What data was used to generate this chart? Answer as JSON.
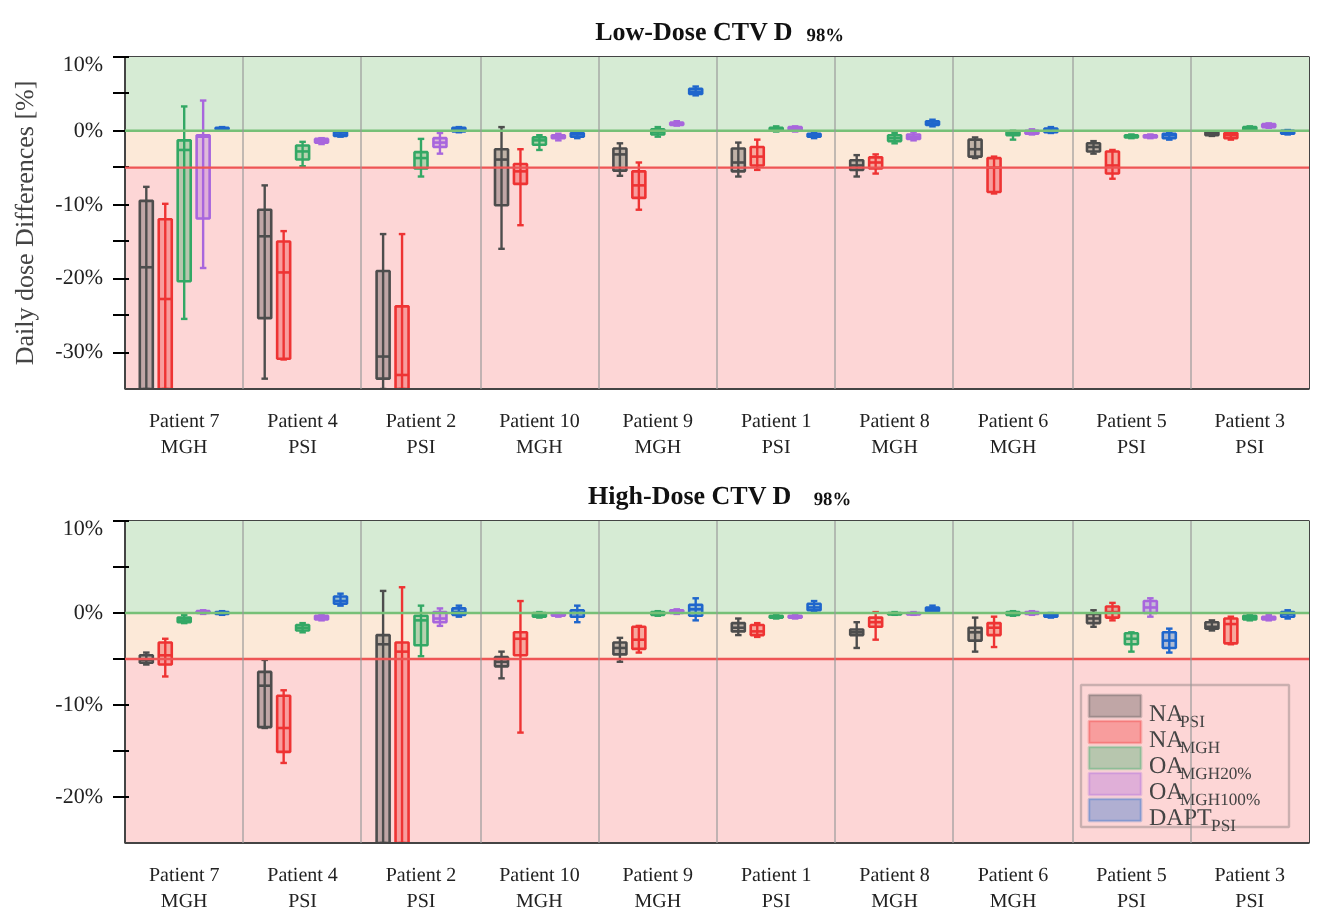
{
  "chart_data": [
    {
      "type": "box",
      "title": "Low-Dose CTV D$_{98%}$",
      "ylabel": "Daily dose Differences [%]",
      "categories": [
        "Patient 7\nMGH",
        "Patient 4\nPSI",
        "Patient 2\nPSI",
        "Patient 10\nMGH",
        "Patient 9\nMGH",
        "Patient 1\nPSI",
        "Patient 8\nMGH",
        "Patient 6\nMGH",
        "Patient 5\nPSI",
        "Patient 3\nPSI"
      ],
      "ylim": [
        -35,
        10
      ],
      "yticks": [
        {
          "value": 10,
          "label": "10%"
        },
        {
          "value": 5,
          "label": null
        },
        {
          "value": 0,
          "label": "0%"
        },
        {
          "value": -5,
          "label": null
        },
        {
          "value": -10,
          "label": "-10%"
        },
        {
          "value": -15,
          "label": null
        },
        {
          "value": -20,
          "label": "-20%"
        },
        {
          "value": -25,
          "label": null
        },
        {
          "value": -30,
          "label": "-30%"
        }
      ],
      "grid": "x",
      "bands": [
        {
          "axis": "y",
          "from": 0,
          "to": 10,
          "color": "#d6ebd4"
        },
        {
          "axis": "y",
          "from": -5,
          "to": 0,
          "color": "#fce9d8"
        },
        {
          "axis": "y",
          "from": -35,
          "to": -5,
          "color": "#fdd6d6"
        }
      ],
      "ref_lines": [
        {
          "axis": "y",
          "value": 0,
          "color": "#77c077"
        },
        {
          "axis": "y",
          "value": -5,
          "color": "#ee5555"
        }
      ],
      "series": [
        {
          "color": "#4d4d4d",
          "boxes": [
            {
              "low": -35,
              "q1": -35,
              "median": -18.5,
              "q3": -9.5,
              "high": -7.6
            },
            {
              "low": -33.6,
              "q1": -25.4,
              "median": -14.3,
              "q3": -10.7,
              "high": -7.4
            },
            {
              "low": -35,
              "q1": -33.6,
              "median": -30.6,
              "q3": -19.0,
              "high": -14.0
            },
            {
              "low": -16.0,
              "q1": -10.1,
              "median": -3.9,
              "q3": -2.5,
              "high": 0.5
            },
            {
              "low": -6.1,
              "q1": -5.4,
              "median": -3.2,
              "q3": -2.4,
              "high": -1.7
            },
            {
              "low": -6.2,
              "q1": -5.5,
              "median": -4.3,
              "q3": -2.4,
              "high": -1.6
            },
            {
              "low": -6.2,
              "q1": -5.3,
              "median": -4.7,
              "q3": -4.0,
              "high": -3.3
            },
            {
              "low": -3.7,
              "q1": -3.5,
              "median": -2.5,
              "q3": -1.2,
              "high": -0.9
            },
            {
              "low": -3.1,
              "q1": -2.8,
              "median": -2.2,
              "q3": -1.7,
              "high": -1.4
            },
            {
              "low": -0.7,
              "q1": -0.6,
              "median": -0.4,
              "q3": -0.2,
              "high": -0.1
            }
          ]
        },
        {
          "color": "#ee3333",
          "boxes": [
            {
              "low": -35,
              "q1": -35,
              "median": -22.8,
              "q3": -12.0,
              "high": -9.9
            },
            {
              "low": -31.0,
              "q1": -30.9,
              "median": -19.2,
              "q3": -15.0,
              "high": -13.6
            },
            {
              "low": -35,
              "q1": -35,
              "median": -33.1,
              "q3": -23.8,
              "high": -14.0
            },
            {
              "low": -12.8,
              "q1": -7.2,
              "median": -5.5,
              "q3": -4.5,
              "high": -2.5
            },
            {
              "low": -10.7,
              "q1": -9.1,
              "median": -7.4,
              "q3": -5.5,
              "high": -4.3
            },
            {
              "low": -5.3,
              "q1": -4.7,
              "median": -3.5,
              "q3": -2.2,
              "high": -1.2
            },
            {
              "low": -5.8,
              "q1": -5.1,
              "median": -4.3,
              "q3": -3.6,
              "high": -3.2
            },
            {
              "low": -8.5,
              "q1": -8.3,
              "median": -5.0,
              "q3": -3.7,
              "high": -3.5
            },
            {
              "low": -6.5,
              "q1": -5.8,
              "median": -4.7,
              "q3": -2.8,
              "high": -2.6
            },
            {
              "low": -1.2,
              "q1": -1.0,
              "median": -0.6,
              "q3": -0.3,
              "high": -0.2
            }
          ]
        },
        {
          "color": "#33a865",
          "boxes": [
            {
              "low": -25.5,
              "q1": -20.4,
              "median": -2.6,
              "q3": -1.3,
              "high": 3.3
            },
            {
              "low": -4.8,
              "q1": -3.9,
              "median": -2.8,
              "q3": -2.0,
              "high": -1.5
            },
            {
              "low": -6.2,
              "q1": -5.1,
              "median": -3.7,
              "q3": -2.9,
              "high": -1.1
            },
            {
              "low": -2.6,
              "q1": -1.9,
              "median": -1.3,
              "q3": -0.9,
              "high": -0.6
            },
            {
              "low": -0.8,
              "q1": -0.5,
              "median": -0.2,
              "q3": 0.2,
              "high": 0.5
            },
            {
              "low": -0.1,
              "q1": 0.0,
              "median": 0.2,
              "q3": 0.4,
              "high": 0.6
            },
            {
              "low": -1.7,
              "q1": -1.4,
              "median": -1.0,
              "q3": -0.6,
              "high": -0.3
            },
            {
              "low": -1.2,
              "q1": -0.6,
              "median": -0.4,
              "q3": -0.2,
              "high": 0.0
            },
            {
              "low": -1.0,
              "q1": -0.9,
              "median": -0.8,
              "q3": -0.6,
              "high": -0.5
            },
            {
              "low": 0.0,
              "q1": 0.1,
              "median": 0.3,
              "q3": 0.5,
              "high": 0.6
            }
          ]
        },
        {
          "color": "#a866dd",
          "boxes": [
            {
              "low": -18.6,
              "q1": -11.9,
              "median": -0.8,
              "q3": -0.6,
              "high": 4.1
            },
            {
              "low": -1.8,
              "q1": -1.6,
              "median": -1.4,
              "q3": -1.1,
              "high": -1.0
            },
            {
              "low": -3.1,
              "q1": -2.2,
              "median": -1.6,
              "q3": -1.0,
              "high": -0.3
            },
            {
              "low": -1.3,
              "q1": -1.0,
              "median": -0.8,
              "q3": -0.6,
              "high": -0.4
            },
            {
              "low": 0.7,
              "q1": 0.8,
              "median": 0.9,
              "q3": 1.1,
              "high": 1.3
            },
            {
              "low": -0.1,
              "q1": 0.0,
              "median": 0.2,
              "q3": 0.5,
              "high": 0.6
            },
            {
              "low": -1.3,
              "q1": -1.1,
              "median": -0.8,
              "q3": -0.5,
              "high": -0.2
            },
            {
              "low": -0.5,
              "q1": -0.4,
              "median": -0.2,
              "q3": 0.0,
              "high": 0.2
            },
            {
              "low": -1.0,
              "q1": -0.9,
              "median": -0.7,
              "q3": -0.6,
              "high": -0.5
            },
            {
              "low": 0.4,
              "q1": 0.5,
              "median": 0.7,
              "q3": 0.9,
              "high": 1.0
            }
          ]
        },
        {
          "color": "#1f66cc",
          "boxes": [
            {
              "low": 0.1,
              "q1": 0.2,
              "median": 0.3,
              "q3": 0.4,
              "high": 0.5
            },
            {
              "low": -0.8,
              "q1": -0.7,
              "median": -0.5,
              "q3": -0.2,
              "high": -0.1
            },
            {
              "low": -0.2,
              "q1": -0.1,
              "median": 0.1,
              "q3": 0.4,
              "high": 0.5
            },
            {
              "low": -1.0,
              "q1": -0.8,
              "median": -0.5,
              "q3": -0.3,
              "high": -0.1
            },
            {
              "low": 4.8,
              "q1": 5.0,
              "median": 5.3,
              "q3": 5.7,
              "high": 6.0
            },
            {
              "low": -1.0,
              "q1": -0.8,
              "median": -0.6,
              "q3": -0.4,
              "high": -0.2
            },
            {
              "low": 0.6,
              "q1": 0.8,
              "median": 1.0,
              "q3": 1.3,
              "high": 1.5
            },
            {
              "low": -0.3,
              "q1": -0.2,
              "median": 0.0,
              "q3": 0.3,
              "high": 0.5
            },
            {
              "low": -1.2,
              "q1": -1.0,
              "median": -0.6,
              "q3": -0.4,
              "high": -0.2
            },
            {
              "low": -0.5,
              "q1": -0.4,
              "median": -0.2,
              "q3": 0.0,
              "high": 0.1
            }
          ]
        }
      ]
    },
    {
      "type": "box",
      "title": "High-Dose CTV D$_{98%}$",
      "categories": [
        "Patient 7\nMGH",
        "Patient 4\nPSI",
        "Patient 2\nPSI",
        "Patient 10\nMGH",
        "Patient 9\nMGH",
        "Patient 1\nPSI",
        "Patient 8\nMGH",
        "Patient 6\nMGH",
        "Patient 5\nPSI",
        "Patient 3\nPSI"
      ],
      "ylim": [
        -25,
        10
      ],
      "yticks": [
        {
          "value": 10,
          "label": "10%"
        },
        {
          "value": 5,
          "label": null
        },
        {
          "value": 0,
          "label": "0%"
        },
        {
          "value": -5,
          "label": null
        },
        {
          "value": -10,
          "label": "-10%"
        },
        {
          "value": -15,
          "label": null
        },
        {
          "value": -20,
          "label": "-20%"
        }
      ],
      "grid": "x",
      "legend": "bottom right",
      "bands": [
        {
          "axis": "y",
          "from": 0,
          "to": 10,
          "color": "#d6ebd4"
        },
        {
          "axis": "y",
          "from": -5,
          "to": 0,
          "color": "#fce9d8"
        },
        {
          "axis": "y",
          "from": -25,
          "to": -5,
          "color": "#fdd6d6"
        }
      ],
      "ref_lines": [
        {
          "axis": "y",
          "value": 0,
          "color": "#77c077"
        },
        {
          "axis": "y",
          "value": -5,
          "color": "#ee5555"
        }
      ],
      "series": [
        {
          "name": "NA$_{PSI}$",
          "color": "#4d4d4d",
          "boxes": [
            {
              "low": -5.6,
              "q1": -5.4,
              "median": -5.1,
              "q3": -4.6,
              "high": -4.3
            },
            {
              "low": -12.5,
              "q1": -12.4,
              "median": -7.9,
              "q3": -6.4,
              "high": -5.1
            },
            {
              "low": -25,
              "q1": -25,
              "median": -3.4,
              "q3": -2.4,
              "high": 2.4
            },
            {
              "low": -7.1,
              "q1": -5.8,
              "median": -5.3,
              "q3": -4.8,
              "high": -4.2
            },
            {
              "low": -5.3,
              "q1": -4.5,
              "median": -3.8,
              "q3": -3.2,
              "high": -2.7
            },
            {
              "low": -2.4,
              "q1": -2.0,
              "median": -1.6,
              "q3": -1.1,
              "high": -0.6
            },
            {
              "low": -3.8,
              "q1": -2.4,
              "median": -2.1,
              "q3": -1.8,
              "high": -1.0
            },
            {
              "low": -4.2,
              "q1": -3.0,
              "median": -2.1,
              "q3": -1.6,
              "high": -0.5
            },
            {
              "low": -1.5,
              "q1": -1.1,
              "median": -0.6,
              "q3": -0.1,
              "high": 0.3
            },
            {
              "low": -1.9,
              "q1": -1.7,
              "median": -1.5,
              "q3": -1.0,
              "high": -0.8
            }
          ]
        },
        {
          "name": "NA$_{MGH}$",
          "color": "#ee3333",
          "boxes": [
            {
              "low": -6.9,
              "q1": -5.6,
              "median": -4.6,
              "q3": -3.2,
              "high": -2.8
            },
            {
              "low": -16.3,
              "q1": -15.1,
              "median": -12.5,
              "q3": -9.0,
              "high": -8.4
            },
            {
              "low": -25,
              "q1": -25,
              "median": -4.2,
              "q3": -3.2,
              "high": 2.8
            },
            {
              "low": -13.0,
              "q1": -4.6,
              "median": -2.8,
              "q3": -2.1,
              "high": 1.3
            },
            {
              "low": -4.3,
              "q1": -3.9,
              "median": -2.9,
              "q3": -1.5,
              "high": -1.4
            },
            {
              "low": -2.6,
              "q1": -2.4,
              "median": -2.0,
              "q3": -1.3,
              "high": -1.1
            },
            {
              "low": -2.9,
              "q1": -1.5,
              "median": -1.0,
              "q3": -0.5,
              "high": 0.1
            },
            {
              "low": -3.7,
              "q1": -2.4,
              "median": -1.6,
              "q3": -1.1,
              "high": -0.4
            },
            {
              "low": -0.8,
              "q1": -0.5,
              "median": 0.1,
              "q3": 0.7,
              "high": 1.1
            },
            {
              "low": -3.4,
              "q1": -3.3,
              "median": -1.2,
              "q3": -0.6,
              "high": -0.4
            }
          ]
        },
        {
          "name": "OA$_{MGH20%}$",
          "color": "#33a865",
          "boxes": [
            {
              "low": -1.1,
              "q1": -1.0,
              "median": -0.8,
              "q3": -0.5,
              "high": -0.2
            },
            {
              "low": -2.1,
              "q1": -1.9,
              "median": -1.6,
              "q3": -1.3,
              "high": -1.1
            },
            {
              "low": -4.7,
              "q1": -3.5,
              "median": -0.8,
              "q3": -0.3,
              "high": 0.8
            },
            {
              "low": -0.5,
              "q1": -0.4,
              "median": -0.2,
              "q3": 0.0,
              "high": 0.1
            },
            {
              "low": -0.3,
              "q1": -0.2,
              "median": -0.1,
              "q3": 0.1,
              "high": 0.2
            },
            {
              "low": -0.6,
              "q1": -0.5,
              "median": -0.4,
              "q3": -0.3,
              "high": -0.2
            },
            {
              "low": -0.2,
              "q1": -0.15,
              "median": -0.1,
              "q3": 0.0,
              "high": 0.1
            },
            {
              "low": -0.3,
              "q1": -0.2,
              "median": 0.0,
              "q3": 0.1,
              "high": 0.2
            },
            {
              "low": -4.2,
              "q1": -3.4,
              "median": -2.8,
              "q3": -2.2,
              "high": -2.1
            },
            {
              "low": -0.8,
              "q1": -0.7,
              "median": -0.5,
              "q3": -0.3,
              "high": -0.2
            }
          ]
        },
        {
          "name": "OA$_{MGH100%}$",
          "color": "#a866dd",
          "boxes": [
            {
              "low": -0.1,
              "q1": 0.0,
              "median": 0.1,
              "q3": 0.2,
              "high": 0.3
            },
            {
              "low": -0.8,
              "q1": -0.7,
              "median": -0.5,
              "q3": -0.3,
              "high": -0.1
            },
            {
              "low": -1.4,
              "q1": -1.0,
              "median": -0.6,
              "q3": 0.1,
              "high": 0.5
            },
            {
              "low": -0.4,
              "q1": -0.3,
              "median": -0.2,
              "q3": -0.1,
              "high": 0.0
            },
            {
              "low": -0.1,
              "q1": 0.0,
              "median": 0.2,
              "q3": 0.3,
              "high": 0.4
            },
            {
              "low": -0.6,
              "q1": -0.5,
              "median": -0.4,
              "q3": -0.3,
              "high": -0.2
            },
            {
              "low": -0.2,
              "q1": -0.15,
              "median": -0.1,
              "q3": 0.0,
              "high": 0.1
            },
            {
              "low": -0.2,
              "q1": -0.1,
              "median": 0.0,
              "q3": 0.1,
              "high": 0.2
            },
            {
              "low": -0.4,
              "q1": 0.0,
              "median": 0.6,
              "q3": 1.3,
              "high": 1.6
            },
            {
              "low": -0.8,
              "q1": -0.7,
              "median": -0.6,
              "q3": -0.4,
              "high": -0.2
            }
          ]
        },
        {
          "name": "DAPT$_{PSI}$",
          "color": "#1f66cc",
          "boxes": [
            {
              "low": -0.2,
              "q1": -0.1,
              "median": 0.0,
              "q3": 0.1,
              "high": 0.2
            },
            {
              "low": 0.8,
              "q1": 1.0,
              "median": 1.3,
              "q3": 1.8,
              "high": 2.1
            },
            {
              "low": -0.4,
              "q1": -0.2,
              "median": 0.1,
              "q3": 0.5,
              "high": 0.8
            },
            {
              "low": -1.0,
              "q1": -0.4,
              "median": 0.0,
              "q3": 0.3,
              "high": 0.8
            },
            {
              "low": -0.8,
              "q1": -0.3,
              "median": 0.4,
              "q3": 0.9,
              "high": 1.6
            },
            {
              "low": 0.1,
              "q1": 0.3,
              "median": 0.6,
              "q3": 1.0,
              "high": 1.3
            },
            {
              "low": 0.1,
              "q1": 0.2,
              "median": 0.4,
              "q3": 0.6,
              "high": 0.8
            },
            {
              "low": -0.5,
              "q1": -0.4,
              "median": -0.3,
              "q3": -0.1,
              "high": 0.0
            },
            {
              "low": -4.3,
              "q1": -3.8,
              "median": -3.0,
              "q3": -2.1,
              "high": -1.7
            },
            {
              "low": -0.6,
              "q1": -0.4,
              "median": -0.1,
              "q3": 0.1,
              "high": 0.3
            }
          ]
        }
      ]
    }
  ]
}
